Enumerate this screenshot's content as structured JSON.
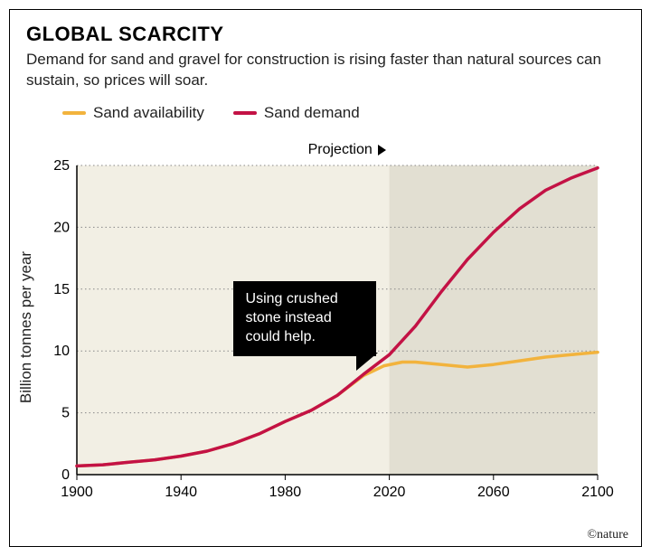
{
  "title": "GLOBAL SCARCITY",
  "subtitle": "Demand for sand and gravel for construction is rising faster than natural sources can sustain, so prices will soar.",
  "legend": {
    "availability": {
      "label": "Sand availability",
      "color": "#f2b33d"
    },
    "demand": {
      "label": "Sand demand",
      "color": "#c31245"
    }
  },
  "projection": {
    "label": "Projection",
    "start_year": 2020
  },
  "callout": {
    "text": "Using crushed stone instead could help."
  },
  "credit": "©nature",
  "y_axis": {
    "label": "Billion tonnes per year",
    "min": 0,
    "max": 25,
    "ticks": [
      0,
      5,
      10,
      15,
      20,
      25
    ]
  },
  "x_axis": {
    "min": 1900,
    "max": 2100,
    "ticks": [
      1900,
      1940,
      1980,
      2020,
      2060,
      2100
    ]
  },
  "plot": {
    "background": "#f2efe4",
    "projection_background": "#e2dfd2",
    "grid_color": "#888888",
    "axis_color": "#000000",
    "line_width": 3.5
  },
  "series": {
    "demand": {
      "color": "#c31245",
      "points": [
        [
          1900,
          0.7
        ],
        [
          1910,
          0.8
        ],
        [
          1920,
          1.0
        ],
        [
          1930,
          1.2
        ],
        [
          1940,
          1.5
        ],
        [
          1950,
          1.9
        ],
        [
          1960,
          2.5
        ],
        [
          1970,
          3.3
        ],
        [
          1980,
          4.3
        ],
        [
          1990,
          5.2
        ],
        [
          2000,
          6.4
        ],
        [
          2010,
          8.1
        ],
        [
          2020,
          9.7
        ],
        [
          2030,
          12.0
        ],
        [
          2040,
          14.8
        ],
        [
          2050,
          17.4
        ],
        [
          2060,
          19.6
        ],
        [
          2070,
          21.5
        ],
        [
          2080,
          23.0
        ],
        [
          2090,
          24.0
        ],
        [
          2100,
          24.8
        ]
      ]
    },
    "availability": {
      "color": "#f2b33d",
      "points": [
        [
          1900,
          0.7
        ],
        [
          1910,
          0.8
        ],
        [
          1920,
          1.0
        ],
        [
          1930,
          1.2
        ],
        [
          1940,
          1.5
        ],
        [
          1950,
          1.9
        ],
        [
          1960,
          2.5
        ],
        [
          1970,
          3.3
        ],
        [
          1980,
          4.3
        ],
        [
          1990,
          5.2
        ],
        [
          2000,
          6.4
        ],
        [
          2010,
          8.0
        ],
        [
          2018,
          8.8
        ],
        [
          2025,
          9.1
        ],
        [
          2030,
          9.1
        ],
        [
          2040,
          8.9
        ],
        [
          2050,
          8.7
        ],
        [
          2060,
          8.9
        ],
        [
          2070,
          9.2
        ],
        [
          2080,
          9.5
        ],
        [
          2090,
          9.7
        ],
        [
          2100,
          9.9
        ]
      ]
    }
  }
}
